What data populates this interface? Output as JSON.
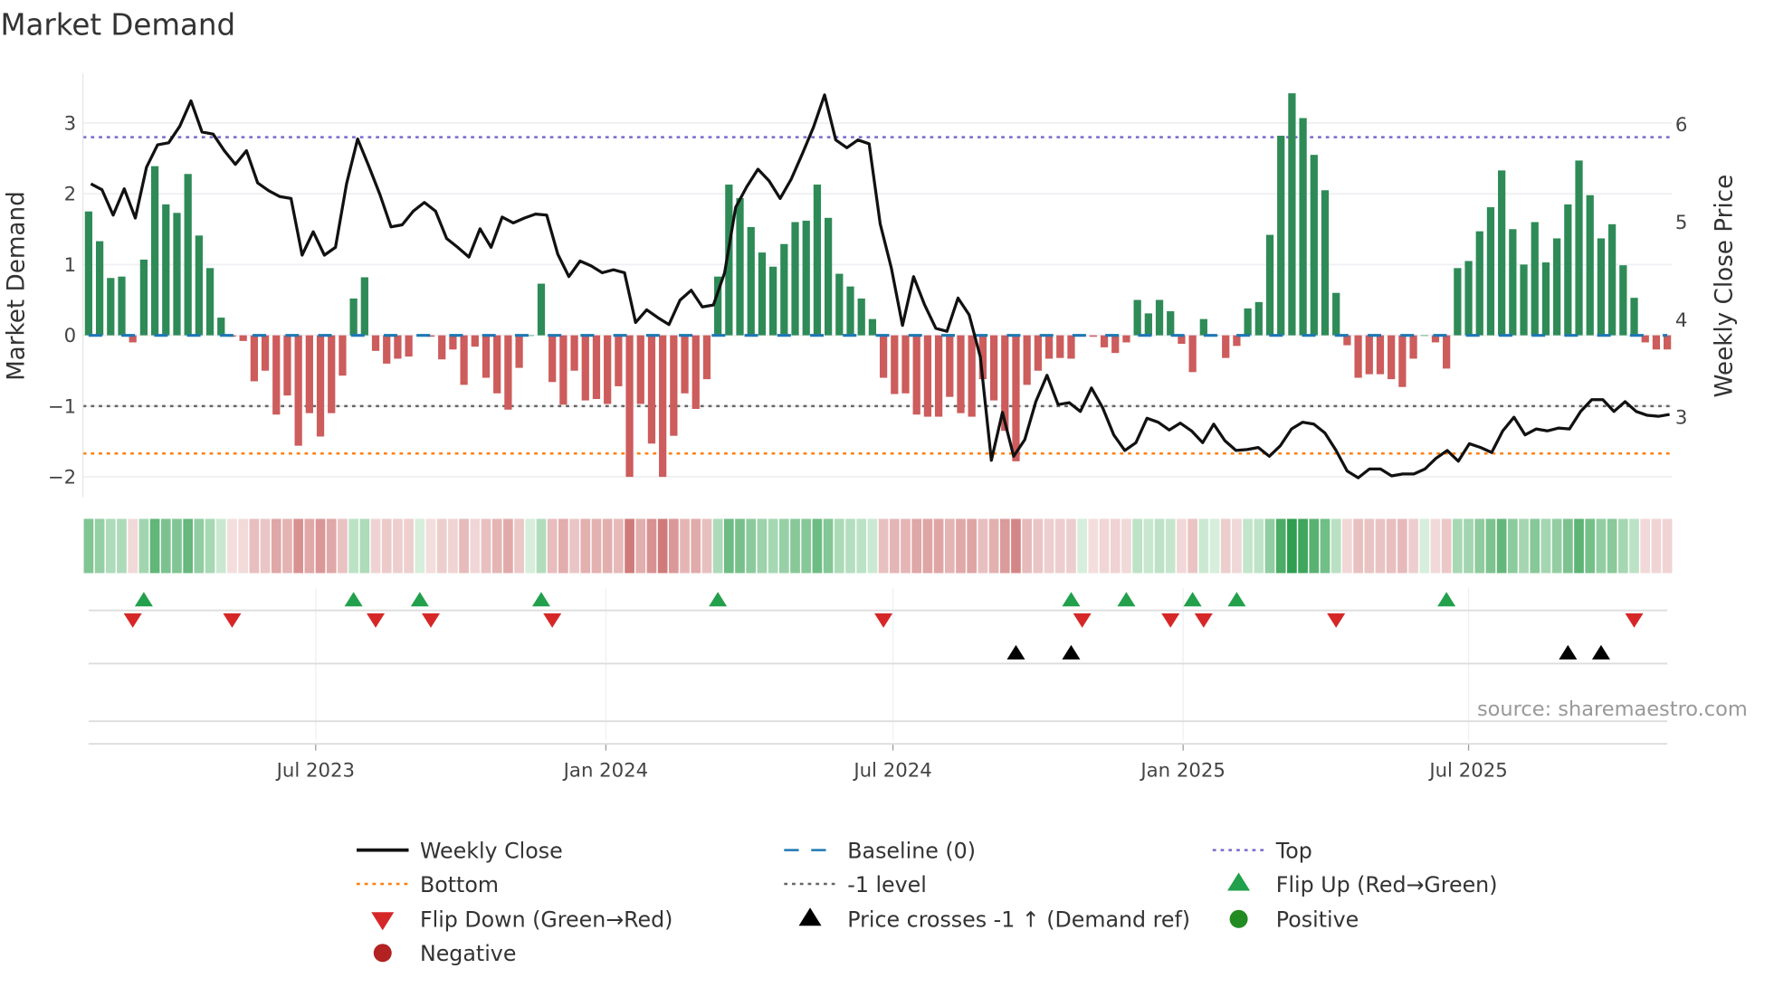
{
  "chart_data": {
    "type": "bar",
    "title": "Market Demand",
    "ylabel": "Market Demand",
    "y2label": "Weekly Close Price",
    "ylim": [
      -2.29,
      3.7
    ],
    "y2lim": [
      2.18,
      6.52
    ],
    "yticks": [
      "−2",
      "−1",
      "0",
      "1",
      "2",
      "3"
    ],
    "ytick_values": [
      -2,
      -1,
      0,
      1,
      2,
      3
    ],
    "y2ticks": [
      "3",
      "4",
      "5",
      "6"
    ],
    "y2tick_values": [
      3,
      4,
      5,
      6
    ],
    "x_start": "2023-02-07",
    "x_frequency": "weekly",
    "xticks": [
      {
        "label": "Jul 2023",
        "date": "2023-07-01"
      },
      {
        "label": "Jan 2024",
        "date": "2024-01-01"
      },
      {
        "label": "Jul 2024",
        "date": "2024-07-01"
      },
      {
        "label": "Jan 2025",
        "date": "2025-01-01"
      },
      {
        "label": "Jul 2025",
        "date": "2025-07-01"
      }
    ],
    "levels": {
      "top": 2.8,
      "bottom": -1.67,
      "minus_one": -1,
      "baseline": 0
    },
    "demand": [
      1.75,
      1.33,
      0.81,
      0.83,
      -0.1,
      1.07,
      2.39,
      1.85,
      1.73,
      2.28,
      1.41,
      0.95,
      0.25,
      -0.02,
      -0.08,
      -0.65,
      -0.5,
      -1.12,
      -0.85,
      -1.56,
      -1.1,
      -1.43,
      -1.1,
      -0.57,
      0.52,
      0.82,
      -0.22,
      -0.4,
      -0.33,
      -0.3,
      0,
      -0.02,
      -0.34,
      -0.2,
      -0.7,
      -0.16,
      -0.6,
      -0.82,
      -1.05,
      -0.46,
      0,
      0.73,
      -0.66,
      -0.98,
      -0.5,
      -0.92,
      -0.9,
      -0.97,
      -0.72,
      -2.0,
      -0.97,
      -1.53,
      -2.0,
      -1.42,
      -0.82,
      -1.04,
      -0.62,
      0.83,
      2.13,
      1.94,
      1.53,
      1.17,
      0.97,
      1.29,
      1.6,
      1.62,
      2.13,
      1.66,
      0.87,
      0.69,
      0.52,
      0.23,
      -0.6,
      -0.83,
      -0.82,
      -1.12,
      -1.15,
      -1.15,
      -0.87,
      -1.1,
      -1.15,
      -0.62,
      -0.92,
      -1.35,
      -1.78,
      -0.7,
      -0.5,
      -0.33,
      -0.32,
      -0.33,
      0,
      -0.02,
      -0.17,
      -0.25,
      -0.1,
      0.5,
      0.31,
      0.5,
      0.34,
      -0.12,
      -0.52,
      0.23,
      0,
      -0.32,
      -0.15,
      0.38,
      0.47,
      1.42,
      2.82,
      3.42,
      3.07,
      2.55,
      2.05,
      0.6,
      -0.14,
      -0.6,
      -0.55,
      -0.55,
      -0.62,
      -0.73,
      -0.33,
      0,
      -0.1,
      -0.47,
      0.95,
      1.05,
      1.47,
      1.81,
      2.33,
      1.5,
      1.0,
      1.6,
      1.03,
      1.37,
      1.85,
      2.47,
      1.98,
      1.37,
      1.57,
      0.99,
      0.53,
      -0.1,
      -0.2,
      -0.2
    ],
    "weekly_close": [
      5.39,
      5.33,
      5.07,
      5.34,
      5.04,
      5.56,
      5.79,
      5.81,
      5.98,
      6.24,
      5.92,
      5.9,
      5.73,
      5.59,
      5.73,
      5.4,
      5.32,
      5.26,
      5.24,
      4.66,
      4.9,
      4.66,
      4.74,
      5.39,
      5.85,
      5.57,
      5.28,
      4.95,
      4.97,
      5.11,
      5.2,
      5.11,
      4.83,
      4.74,
      4.64,
      4.93,
      4.74,
      5.05,
      4.99,
      5.04,
      5.08,
      5.07,
      4.67,
      4.44,
      4.6,
      4.55,
      4.48,
      4.51,
      4.48,
      3.97,
      4.1,
      4.02,
      3.95,
      4.2,
      4.3,
      4.13,
      4.15,
      4.48,
      5.15,
      5.36,
      5.54,
      5.42,
      5.24,
      5.44,
      5.7,
      5.97,
      6.3,
      5.84,
      5.76,
      5.84,
      5.8,
      4.98,
      4.53,
      3.94,
      4.44,
      4.15,
      3.91,
      3.88,
      4.22,
      4.05,
      3.62,
      2.56,
      3.05,
      2.6,
      2.77,
      3.16,
      3.43,
      3.13,
      3.15,
      3.06,
      3.3,
      3.1,
      2.82,
      2.66,
      2.74,
      2.99,
      2.95,
      2.87,
      2.94,
      2.86,
      2.74,
      2.93,
      2.76,
      2.66,
      2.67,
      2.69,
      2.6,
      2.71,
      2.88,
      2.95,
      2.93,
      2.84,
      2.66,
      2.45,
      2.38,
      2.47,
      2.47,
      2.4,
      2.42,
      2.42,
      2.47,
      2.58,
      2.66,
      2.55,
      2.73,
      2.69,
      2.64,
      2.86,
      3.0,
      2.82,
      2.88,
      2.86,
      2.89,
      2.88,
      3.06,
      3.18,
      3.18,
      3.06,
      3.16,
      3.06,
      3.02,
      3.01,
      3.03
    ],
    "flip_up_weeks": [
      5,
      24,
      30,
      41,
      57,
      89,
      94,
      100,
      104,
      123
    ],
    "flip_down_weeks": [
      4,
      13,
      26,
      31,
      42,
      72,
      90,
      98,
      101,
      113,
      140
    ],
    "price_cross_weeks": [
      84,
      89,
      134,
      137
    ],
    "colors": {
      "positive_bar": "#2e8b57",
      "negative_bar": "#cd5c5c",
      "weekly_close": "#111111",
      "baseline": "#1f77b4",
      "top": "#7b68cc",
      "bottom": "#ff7f0e",
      "minus_one": "#666666",
      "flip_up": "#22a04b",
      "flip_down": "#d62728",
      "price_cross": "#000000",
      "positive": "#228b22",
      "negative": "#b22222"
    },
    "legend": [
      {
        "key": "weekly_close",
        "label": "Weekly Close",
        "symbol": "line"
      },
      {
        "key": "baseline",
        "label": "Baseline (0)",
        "symbol": "dash"
      },
      {
        "key": "top",
        "label": "Top",
        "symbol": "dot"
      },
      {
        "key": "bottom",
        "label": "Bottom",
        "symbol": "dot"
      },
      {
        "key": "minus_one",
        "label": "-1 level",
        "symbol": "dot"
      },
      {
        "key": "flip_up",
        "label": "Flip Up (Red→Green)",
        "symbol": "tri-up"
      },
      {
        "key": "flip_down",
        "label": "Flip Down (Green→Red)",
        "symbol": "tri-down"
      },
      {
        "key": "price_cross",
        "label": "Price crosses -1 ↑ (Demand ref)",
        "symbol": "tri-up"
      },
      {
        "key": "positive",
        "label": "Positive",
        "symbol": "circle"
      },
      {
        "key": "negative",
        "label": "Negative",
        "symbol": "circle"
      }
    ],
    "legend_placement": "bottom",
    "source": "source: sharemaestro.com"
  }
}
